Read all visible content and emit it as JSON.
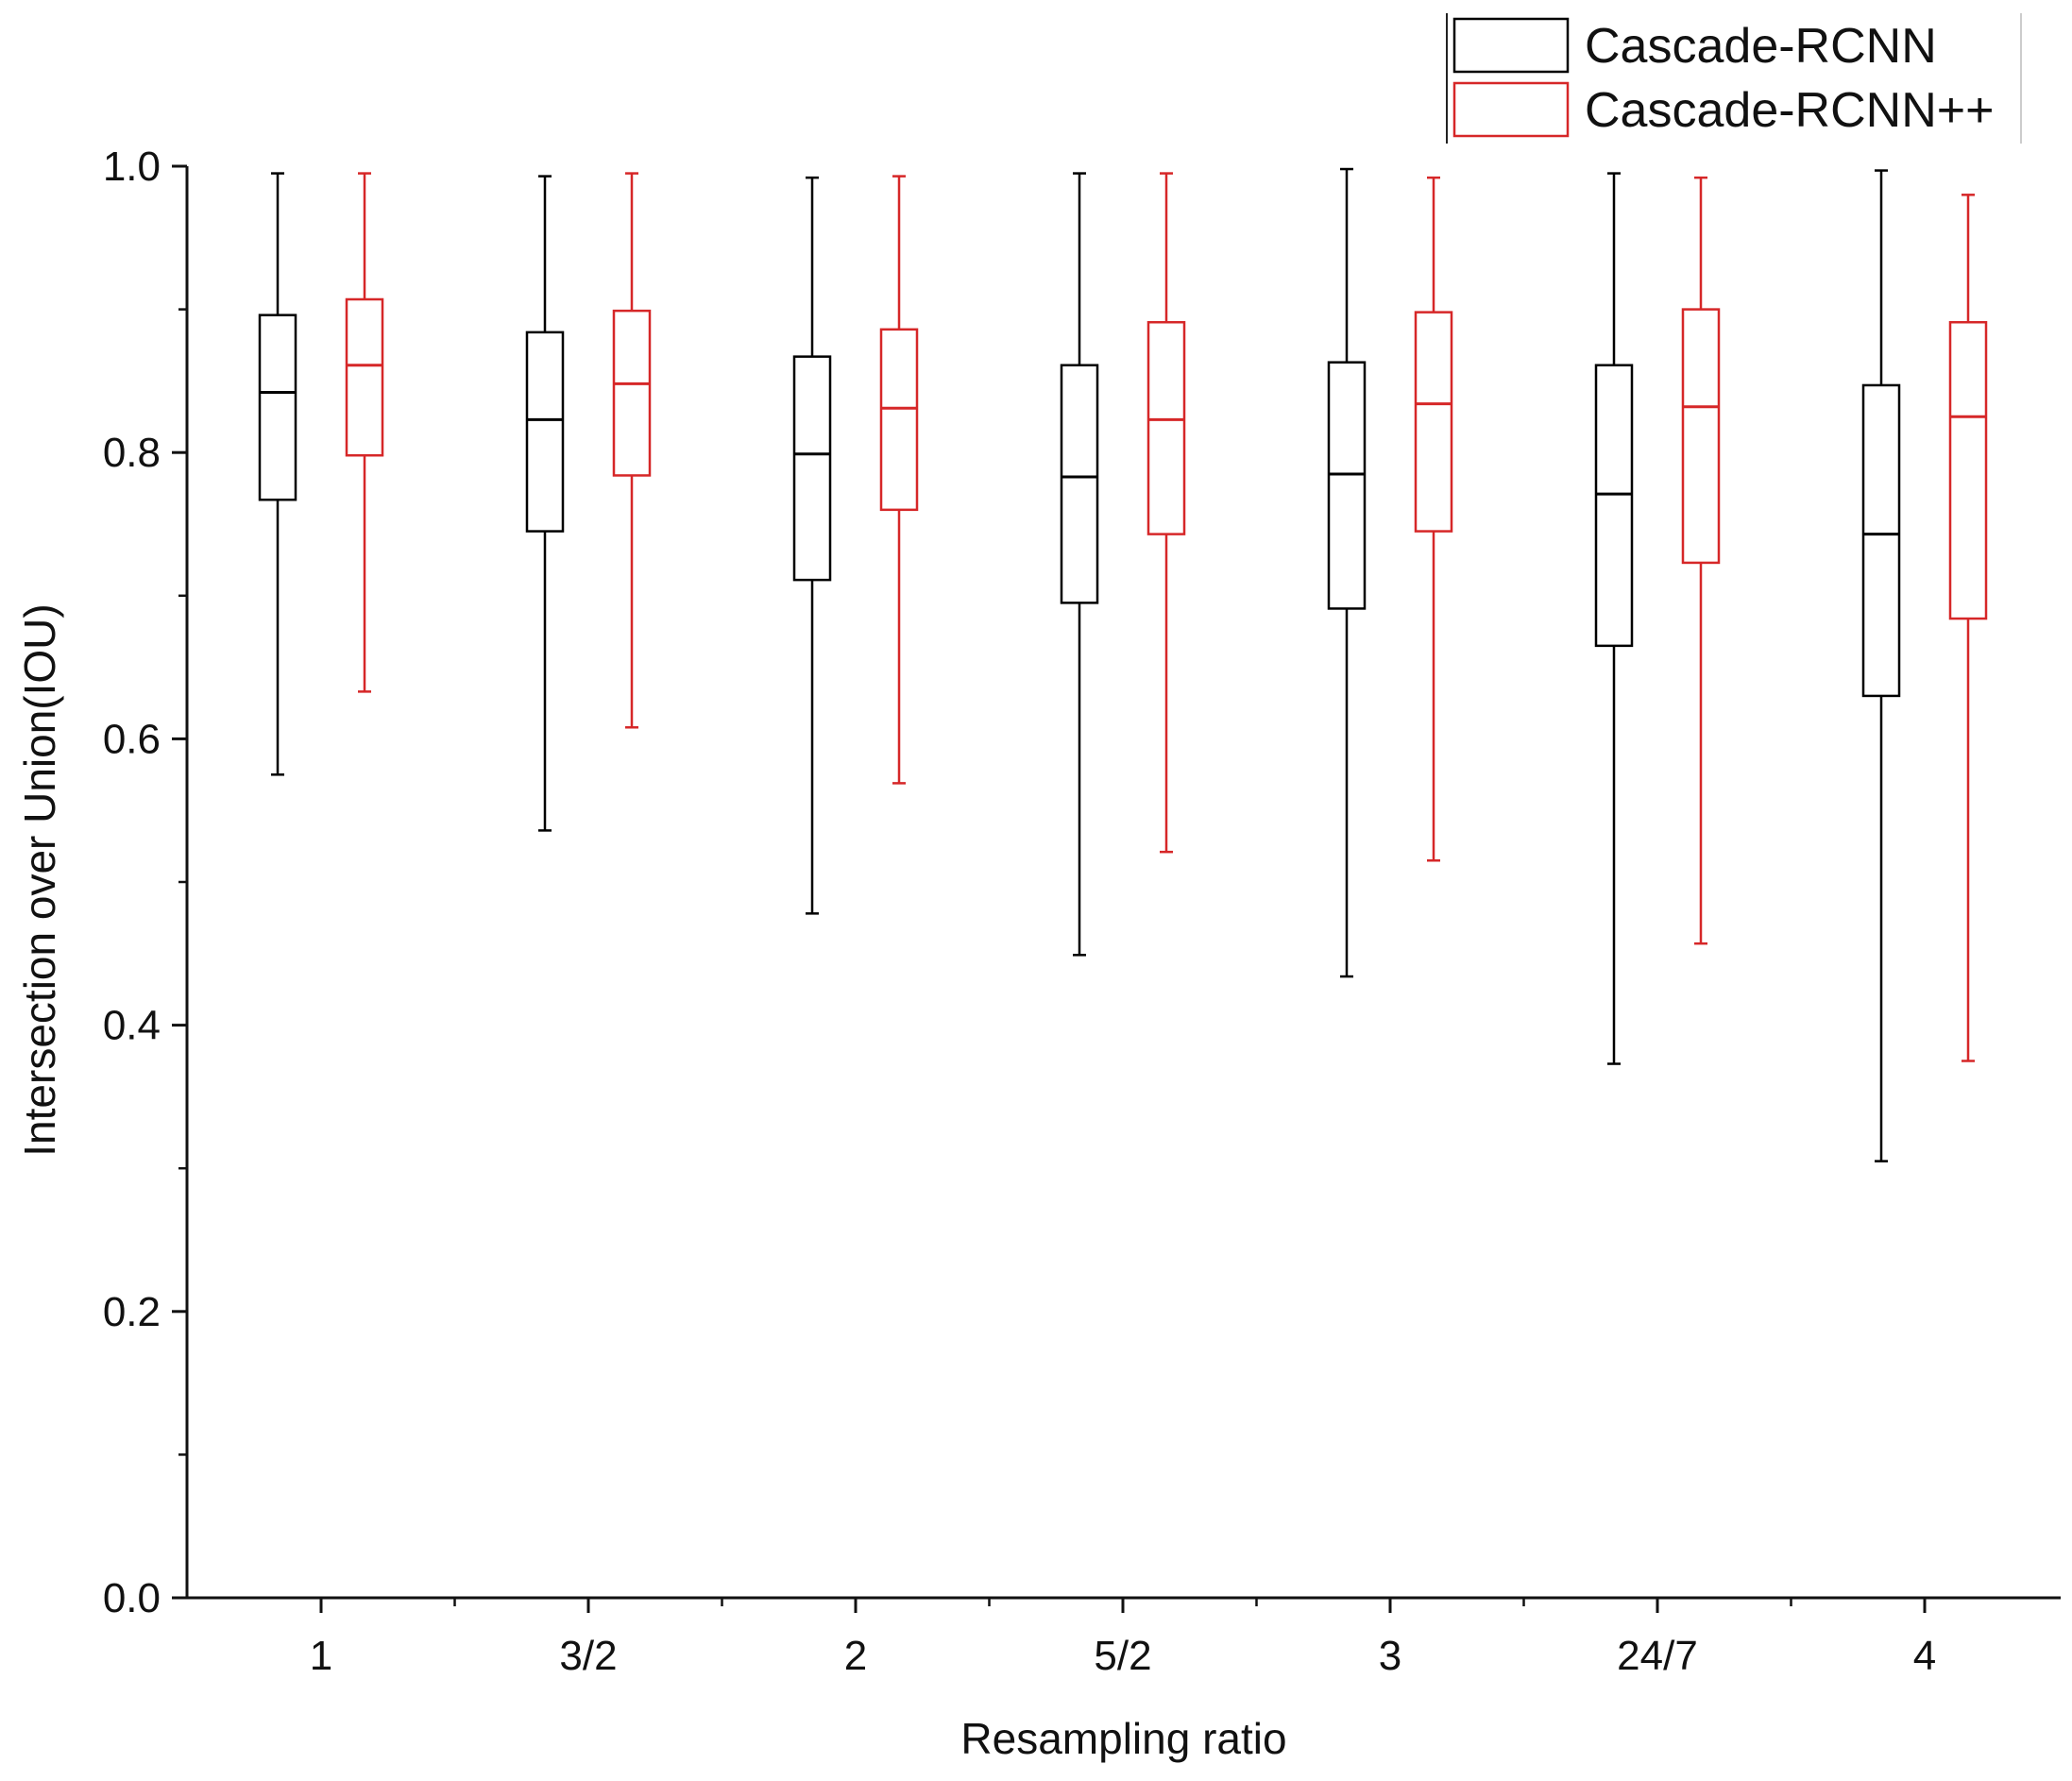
{
  "chart_data": {
    "type": "boxplot",
    "title": "",
    "xlabel": "Resampling ratio",
    "ylabel": "Intersection over Union(IOU)",
    "ylim": [
      0,
      1.0
    ],
    "yticks": [
      0.0,
      0.2,
      0.4,
      0.6,
      0.8,
      1.0
    ],
    "ytick_labels": [
      "0.0",
      "0.2",
      "0.4",
      "0.6",
      "0.8",
      "1.0"
    ],
    "categories": [
      "1",
      "3/2",
      "2",
      "5/2",
      "3",
      "24/7",
      "4"
    ],
    "legend_position": "top-right",
    "series": [
      {
        "name": "Cascade-RCNN",
        "color": "#000000",
        "boxes": [
          {
            "min": 0.575,
            "q1": 0.767,
            "median": 0.842,
            "q3": 0.896,
            "max": 0.995
          },
          {
            "min": 0.536,
            "q1": 0.745,
            "median": 0.823,
            "q3": 0.884,
            "max": 0.993
          },
          {
            "min": 0.478,
            "q1": 0.711,
            "median": 0.799,
            "q3": 0.867,
            "max": 0.992
          },
          {
            "min": 0.449,
            "q1": 0.695,
            "median": 0.783,
            "q3": 0.861,
            "max": 0.995
          },
          {
            "min": 0.434,
            "q1": 0.691,
            "median": 0.785,
            "q3": 0.863,
            "max": 0.998
          },
          {
            "min": 0.373,
            "q1": 0.665,
            "median": 0.771,
            "q3": 0.861,
            "max": 0.995
          },
          {
            "min": 0.305,
            "q1": 0.63,
            "median": 0.743,
            "q3": 0.847,
            "max": 0.997
          }
        ]
      },
      {
        "name": "Cascade-RCNN++",
        "color": "#d62728",
        "boxes": [
          {
            "min": 0.633,
            "q1": 0.798,
            "median": 0.861,
            "q3": 0.907,
            "max": 0.995
          },
          {
            "min": 0.608,
            "q1": 0.784,
            "median": 0.848,
            "q3": 0.899,
            "max": 0.995
          },
          {
            "min": 0.569,
            "q1": 0.76,
            "median": 0.831,
            "q3": 0.886,
            "max": 0.993
          },
          {
            "min": 0.521,
            "q1": 0.743,
            "median": 0.823,
            "q3": 0.891,
            "max": 0.995
          },
          {
            "min": 0.515,
            "q1": 0.745,
            "median": 0.834,
            "q3": 0.898,
            "max": 0.992
          },
          {
            "min": 0.457,
            "q1": 0.723,
            "median": 0.832,
            "q3": 0.9,
            "max": 0.992
          },
          {
            "min": 0.375,
            "q1": 0.684,
            "median": 0.825,
            "q3": 0.891,
            "max": 0.98
          }
        ]
      }
    ]
  }
}
